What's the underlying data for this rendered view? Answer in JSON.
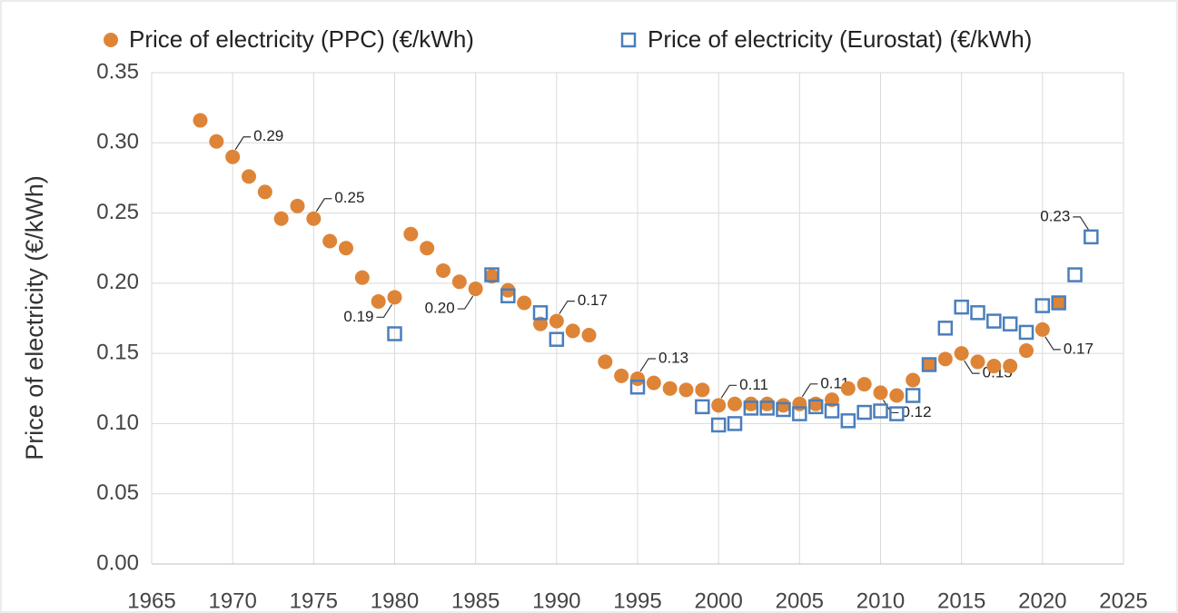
{
  "chart_data": {
    "type": "scatter",
    "y_label": "Price of electricity (€/kWh)",
    "xlim": [
      1965,
      2025
    ],
    "xticks": [
      1965,
      1970,
      1975,
      1980,
      1985,
      1990,
      1995,
      2000,
      2005,
      2010,
      2015,
      2020,
      2025
    ],
    "ylim": [
      0,
      0.35
    ],
    "yticks": [
      {
        "value": 0,
        "label": "0.00"
      },
      {
        "value": 0.05,
        "label": "0.05"
      },
      {
        "value": 0.1,
        "label": "0.10"
      },
      {
        "value": 0.15,
        "label": "0.15"
      },
      {
        "value": 0.2,
        "label": "0.20"
      },
      {
        "value": 0.25,
        "label": "0.25"
      },
      {
        "value": 0.3,
        "label": "0.30"
      },
      {
        "value": 0.35,
        "label": "0.35"
      }
    ],
    "grid": true,
    "series": [
      {
        "name": "Price of electricity (PPC) (€/kWh)",
        "color": "#de8437",
        "marker": "circle",
        "x": [
          1968,
          1969,
          1970,
          1971,
          1972,
          1973,
          1974,
          1975,
          1976,
          1977,
          1978,
          1979,
          1980,
          1981,
          1982,
          1983,
          1984,
          1985,
          1986,
          1987,
          1988,
          1989,
          1990,
          1991,
          1992,
          1993,
          1994,
          1995,
          1996,
          1997,
          1998,
          1999,
          2000,
          2001,
          2002,
          2003,
          2004,
          2005,
          2006,
          2007,
          2008,
          2009,
          2010,
          2011,
          2012,
          2013,
          2014,
          2015,
          2016,
          2017,
          2018,
          2019,
          2020,
          2021
        ],
        "values": [
          0.316,
          0.301,
          0.29,
          0.276,
          0.265,
          0.246,
          0.255,
          0.246,
          0.23,
          0.225,
          0.204,
          0.187,
          0.19,
          0.235,
          0.225,
          0.209,
          0.201,
          0.196,
          0.205,
          0.195,
          0.186,
          0.171,
          0.173,
          0.166,
          0.163,
          0.144,
          0.134,
          0.132,
          0.129,
          0.125,
          0.124,
          0.124,
          0.113,
          0.114,
          0.114,
          0.114,
          0.113,
          0.114,
          0.114,
          0.117,
          0.125,
          0.128,
          0.122,
          0.12,
          0.131,
          0.142,
          0.146,
          0.15,
          0.144,
          0.141,
          0.141,
          0.152,
          0.167,
          0.186
        ],
        "value_labels": [
          null,
          null,
          "0.29",
          null,
          null,
          null,
          null,
          "0.25",
          null,
          null,
          null,
          null,
          "0.19",
          null,
          null,
          null,
          null,
          "0.20",
          null,
          null,
          null,
          null,
          "0.17",
          null,
          null,
          null,
          null,
          "0.13",
          null,
          null,
          null,
          null,
          "0.11",
          null,
          null,
          null,
          null,
          "0.11",
          null,
          null,
          null,
          null,
          "0.12",
          null,
          null,
          null,
          null,
          "0.15",
          null,
          null,
          null,
          null,
          "0.17",
          null
        ]
      },
      {
        "name": "Price of electricity (Eurostat) (€/kWh)",
        "color": "#4a7ebb",
        "marker": "square",
        "x": [
          1980,
          1986,
          1987,
          1989,
          1990,
          1995,
          1999,
          2000,
          2001,
          2002,
          2003,
          2004,
          2005,
          2006,
          2007,
          2008,
          2009,
          2010,
          2011,
          2012,
          2013,
          2014,
          2015,
          2016,
          2017,
          2018,
          2019,
          2020,
          2021,
          2022,
          2023
        ],
        "values": [
          0.164,
          0.206,
          0.191,
          0.179,
          0.16,
          0.126,
          0.112,
          0.099,
          0.1,
          0.111,
          0.111,
          0.11,
          0.107,
          0.112,
          0.109,
          0.102,
          0.108,
          0.109,
          0.107,
          0.12,
          0.142,
          0.168,
          0.183,
          0.179,
          0.173,
          0.171,
          0.165,
          0.184,
          0.186,
          0.206,
          0.233
        ],
        "value_labels": [
          null,
          null,
          null,
          null,
          null,
          null,
          null,
          null,
          null,
          null,
          null,
          null,
          null,
          null,
          null,
          null,
          null,
          null,
          null,
          null,
          null,
          null,
          null,
          null,
          null,
          null,
          null,
          null,
          null,
          null,
          "0.23"
        ]
      }
    ]
  }
}
